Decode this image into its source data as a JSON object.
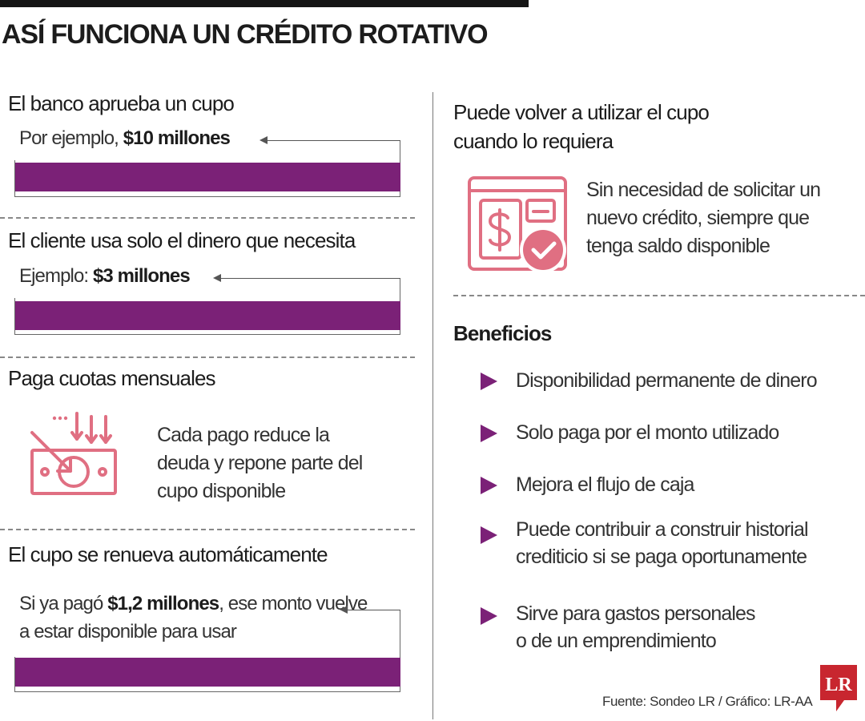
{
  "title": "ASÍ FUNCIONA UN CRÉDITO ROTATIVO",
  "steps": [
    {
      "heading": "El banco aprueba un cupo",
      "example_prefix": "Por ejemplo, ",
      "example_amount": "$10 millones"
    },
    {
      "heading": "El cliente usa solo el dinero que necesita",
      "example_prefix": "Ejemplo: ",
      "example_amount": "$3 millones"
    },
    {
      "heading": "Paga cuotas mensuales",
      "description": "Cada pago reduce la deuda y repone parte del cupo disponible",
      "icon": "money-down-arrows-icon"
    },
    {
      "heading": "El cupo se renueva automáticamente",
      "example_prefix": "Si ya pagó ",
      "example_amount": "$1,2 millones",
      "example_suffix": ", ese monto vuelve a estar disponible para usar"
    }
  ],
  "reuse": {
    "heading": "Puede volver a utilizar el cupo cuando lo requiera",
    "description": "Sin necesidad de solicitar un nuevo crédito, siempre que tenga saldo disponible",
    "icon": "document-dollar-check-icon"
  },
  "benefits": {
    "heading": "Beneficios",
    "items": [
      "Disponibilidad permanente de dinero",
      "Solo paga por el monto utilizado",
      "Mejora el flujo de caja",
      "Puede contribuir a construir historial\ncrediticio si se paga oportunamente",
      "Sirve para gastos personales\no de un emprendimiento"
    ]
  },
  "source": "Fuente: Sondeo LR / Gráfico: LR-AA",
  "logo_text": "LR",
  "colors": {
    "accent_purple": "#7b2177",
    "icon_pink": "#e06f82",
    "logo_red": "#c8262f"
  }
}
